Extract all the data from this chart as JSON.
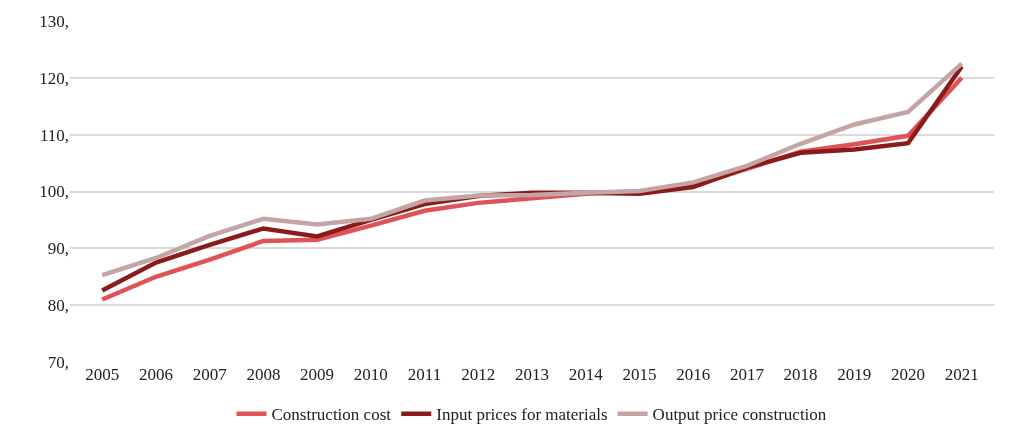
{
  "chart_data": {
    "type": "line",
    "categories": [
      "2005",
      "2006",
      "2007",
      "2008",
      "2009",
      "2010",
      "2011",
      "2012",
      "2013",
      "2014",
      "2015",
      "2016",
      "2017",
      "2018",
      "2019",
      "2020",
      "2021"
    ],
    "series": [
      {
        "name": "Construction cost",
        "color": "#e05255",
        "values": [
          81.0,
          85.0,
          88.0,
          91.3,
          91.5,
          94.0,
          96.6,
          98.0,
          98.8,
          99.6,
          100.0,
          101.0,
          104.0,
          107.0,
          108.3,
          109.8,
          120.0
        ]
      },
      {
        "name": "Input prices for materials",
        "color": "#8b1a1a",
        "values": [
          82.6,
          87.5,
          90.6,
          93.5,
          92.1,
          95.0,
          97.8,
          99.2,
          99.8,
          99.8,
          99.6,
          100.8,
          104.2,
          106.8,
          107.4,
          108.5,
          122.0
        ]
      },
      {
        "name": "Output price construction",
        "color": "#c4a4a4",
        "values": [
          85.3,
          88.3,
          92.2,
          95.2,
          94.2,
          95.2,
          98.4,
          99.3,
          99.4,
          99.8,
          100.1,
          101.6,
          104.5,
          108.4,
          111.8,
          114.0,
          122.5
        ]
      }
    ],
    "ylim": [
      70,
      130
    ],
    "yticks": [
      {
        "value": 70,
        "label": "70,"
      },
      {
        "value": 80,
        "label": "80,"
      },
      {
        "value": 90,
        "label": "90,"
      },
      {
        "value": 100,
        "label": "100,"
      },
      {
        "value": 110,
        "label": "110,"
      },
      {
        "value": 120,
        "label": "120,"
      },
      {
        "value": 130,
        "label": "130,"
      }
    ],
    "grid": "y",
    "legend": "bottom",
    "marker": "none",
    "line_style": "solid"
  }
}
